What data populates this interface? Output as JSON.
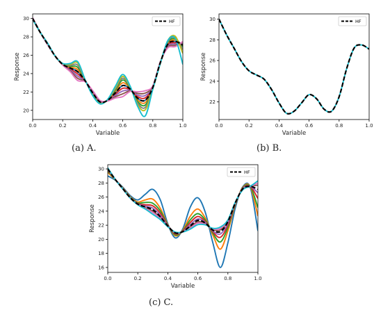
{
  "chart_data": [
    {
      "type": "line",
      "panel": "A",
      "xlabel": "Variable",
      "ylabel": "Response",
      "xlim": [
        0,
        1
      ],
      "ylim": [
        19,
        30.5
      ],
      "xticks": [
        0.0,
        0.2,
        0.4,
        0.6,
        0.8,
        1.0
      ],
      "yticks": [
        20,
        22,
        24,
        26,
        28,
        30
      ],
      "legend": {
        "position": "top-right",
        "entries": [
          "HF"
        ]
      },
      "grid": false,
      "x": [
        0,
        0.05,
        0.1,
        0.15,
        0.2,
        0.25,
        0.3,
        0.35,
        0.4,
        0.45,
        0.5,
        0.55,
        0.6,
        0.65,
        0.7,
        0.75,
        0.8,
        0.85,
        0.9,
        0.95,
        1.0
      ],
      "series": [
        {
          "name": "HF",
          "style": "dashed",
          "color": "#000000",
          "values": [
            30.0,
            28.5,
            27.2,
            25.9,
            25.0,
            24.6,
            24.2,
            23.2,
            21.9,
            20.9,
            21.1,
            21.9,
            22.7,
            22.3,
            21.3,
            21.1,
            22.5,
            25.2,
            27.2,
            27.5,
            27.1
          ]
        },
        {
          "color": "#1f77b4",
          "values": [
            30.0,
            28.5,
            27.2,
            25.9,
            25.0,
            24.6,
            24.2,
            23.2,
            21.9,
            20.9,
            21.1,
            21.9,
            22.7,
            22.3,
            21.3,
            21.1,
            22.5,
            25.2,
            27.2,
            27.5,
            27.1
          ]
        },
        {
          "color": "#ff7f0e",
          "values": [
            29.98,
            28.5,
            27.22,
            25.9,
            25.02,
            24.7,
            24.44,
            23.22,
            21.84,
            20.86,
            21.12,
            22.04,
            23.0,
            22.36,
            21.12,
            20.84,
            22.46,
            25.18,
            27.3,
            27.64,
            27.0
          ]
        },
        {
          "color": "#2ca02c",
          "values": [
            29.96,
            28.5,
            27.24,
            25.9,
            25.04,
            24.8,
            24.68,
            23.24,
            21.78,
            20.82,
            21.14,
            22.18,
            23.3,
            22.42,
            20.94,
            20.58,
            22.42,
            25.16,
            27.4,
            27.78,
            26.9
          ]
        },
        {
          "color": "#d62728",
          "values": [
            30.02,
            28.5,
            27.18,
            25.9,
            24.98,
            24.5,
            23.96,
            23.18,
            21.96,
            20.94,
            21.08,
            21.76,
            22.4,
            22.24,
            21.48,
            21.36,
            22.54,
            25.22,
            27.1,
            27.36,
            27.2
          ]
        },
        {
          "color": "#9467bd",
          "values": [
            30.04,
            28.5,
            27.16,
            25.9,
            24.96,
            24.4,
            23.72,
            23.16,
            22.02,
            20.98,
            21.06,
            21.62,
            22.1,
            22.18,
            21.66,
            21.62,
            22.58,
            25.24,
            27.0,
            27.22,
            27.3
          ]
        },
        {
          "color": "#8c564b",
          "values": [
            30.06,
            28.5,
            27.14,
            25.9,
            24.94,
            24.3,
            23.48,
            23.14,
            22.08,
            21.02,
            21.04,
            21.48,
            21.8,
            22.12,
            21.84,
            21.88,
            22.62,
            25.26,
            26.9,
            27.08,
            27.4
          ]
        },
        {
          "color": "#e377c2",
          "values": [
            30.08,
            28.5,
            27.12,
            25.9,
            24.92,
            24.2,
            23.24,
            23.12,
            22.14,
            21.06,
            21.02,
            21.34,
            21.5,
            22.06,
            22.02,
            22.14,
            22.66,
            25.28,
            26.8,
            26.94,
            27.5
          ]
        },
        {
          "color": "#7f7f7f",
          "values": [
            29.94,
            28.5,
            27.26,
            25.9,
            25.06,
            24.9,
            24.92,
            23.26,
            21.72,
            20.78,
            21.16,
            22.32,
            23.5,
            22.48,
            20.76,
            20.32,
            22.38,
            25.14,
            27.5,
            27.92,
            26.6
          ]
        },
        {
          "color": "#bcbd22",
          "values": [
            29.92,
            28.5,
            27.28,
            25.9,
            25.08,
            25.0,
            25.16,
            23.28,
            21.66,
            20.74,
            21.18,
            22.46,
            23.7,
            22.54,
            20.58,
            20.06,
            22.34,
            25.12,
            27.6,
            28.06,
            26.2
          ]
        },
        {
          "color": "#17becf",
          "values": [
            29.9,
            28.5,
            27.3,
            25.9,
            25.1,
            25.1,
            25.3,
            23.3,
            21.6,
            20.7,
            21.2,
            22.6,
            23.9,
            22.6,
            20.4,
            19.4,
            22.3,
            25.1,
            27.6,
            27.8,
            25.0
          ]
        }
      ]
    },
    {
      "type": "line",
      "panel": "B",
      "xlabel": "Variable",
      "ylabel": "Response",
      "xlim": [
        0,
        1
      ],
      "ylim": [
        20.3,
        30.5
      ],
      "xticks": [
        0.0,
        0.2,
        0.4,
        0.6,
        0.8,
        1.0
      ],
      "yticks": [
        22,
        24,
        26,
        28,
        30
      ],
      "legend": {
        "position": "top-right",
        "entries": [
          "HF"
        ]
      },
      "grid": false,
      "x": [
        0,
        0.05,
        0.1,
        0.15,
        0.2,
        0.25,
        0.3,
        0.35,
        0.4,
        0.45,
        0.5,
        0.55,
        0.6,
        0.65,
        0.7,
        0.75,
        0.8,
        0.85,
        0.9,
        0.95,
        1.0
      ],
      "series": [
        {
          "name": "HF",
          "style": "dashed",
          "color": "#000000",
          "values": [
            30.0,
            28.5,
            27.2,
            25.9,
            25.0,
            24.6,
            24.2,
            23.2,
            21.9,
            20.9,
            21.1,
            21.9,
            22.7,
            22.3,
            21.3,
            21.1,
            22.5,
            25.2,
            27.2,
            27.5,
            27.1
          ]
        },
        {
          "color": "#17becf",
          "values": [
            30.0,
            28.5,
            27.2,
            25.9,
            25.0,
            24.6,
            24.2,
            23.2,
            21.9,
            20.9,
            21.1,
            21.9,
            22.7,
            22.3,
            21.3,
            21.1,
            22.5,
            25.2,
            27.2,
            27.5,
            27.1
          ]
        }
      ]
    },
    {
      "type": "line",
      "panel": "C",
      "xlabel": "Variable",
      "ylabel": "Response",
      "xlim": [
        0,
        1
      ],
      "ylim": [
        15.3,
        30.6
      ],
      "xticks": [
        0.0,
        0.2,
        0.4,
        0.6,
        0.8,
        1.0
      ],
      "yticks": [
        16,
        18,
        20,
        22,
        24,
        26,
        28,
        30
      ],
      "legend": {
        "position": "top-right",
        "entries": [
          "HF"
        ]
      },
      "grid": false,
      "x": [
        0,
        0.05,
        0.1,
        0.15,
        0.2,
        0.25,
        0.3,
        0.35,
        0.4,
        0.45,
        0.5,
        0.55,
        0.6,
        0.65,
        0.7,
        0.75,
        0.8,
        0.85,
        0.9,
        0.95,
        1.0
      ],
      "series": [
        {
          "name": "HF",
          "style": "dashed",
          "color": "#000000",
          "values": [
            30.0,
            28.5,
            27.2,
            25.9,
            25.0,
            24.6,
            24.2,
            23.2,
            21.9,
            20.9,
            21.1,
            21.9,
            22.7,
            22.3,
            21.3,
            21.1,
            22.5,
            25.2,
            27.2,
            27.5,
            27.1
          ]
        },
        {
          "color": "#1f77b4",
          "values": [
            29.0,
            28.4,
            27.4,
            26.2,
            25.6,
            26.4,
            27.1,
            25.6,
            22.2,
            20.2,
            21.5,
            24.6,
            25.9,
            23.8,
            19.5,
            16.0,
            19.5,
            24.5,
            27.5,
            27.3,
            21.2
          ]
        },
        {
          "color": "#ff7f0e",
          "values": [
            29.5,
            28.45,
            27.3,
            26.05,
            25.3,
            25.6,
            25.7,
            24.4,
            22.1,
            20.5,
            21.3,
            23.3,
            24.3,
            23.0,
            20.6,
            18.6,
            21.2,
            24.9,
            27.4,
            27.45,
            23.3
          ]
        },
        {
          "color": "#2ca02c",
          "values": [
            29.7,
            28.47,
            27.26,
            25.99,
            25.18,
            25.24,
            25.12,
            24.04,
            22.06,
            20.62,
            21.22,
            22.78,
            23.64,
            22.72,
            20.88,
            19.62,
            21.68,
            24.98,
            27.34,
            27.48,
            24.5
          ]
        },
        {
          "color": "#d62728",
          "values": [
            29.85,
            28.49,
            27.23,
            25.94,
            25.09,
            24.91,
            24.75,
            23.71,
            22.0,
            20.77,
            21.17,
            22.4,
            23.24,
            22.51,
            21.06,
            20.28,
            22.01,
            25.07,
            27.28,
            27.49,
            25.8
          ]
        },
        {
          "color": "#9467bd",
          "values": [
            29.95,
            28.5,
            27.21,
            25.91,
            25.03,
            24.72,
            24.42,
            23.41,
            21.95,
            20.86,
            21.12,
            22.09,
            22.9,
            22.39,
            21.2,
            20.76,
            22.3,
            25.15,
            27.23,
            27.5,
            26.6
          ]
        },
        {
          "color": "#8c564b",
          "values": [
            30.05,
            28.5,
            27.19,
            25.89,
            24.98,
            24.5,
            24.0,
            23.1,
            21.86,
            20.94,
            21.08,
            21.78,
            22.5,
            22.22,
            21.38,
            21.34,
            22.62,
            25.22,
            27.14,
            27.52,
            27.7
          ]
        },
        {
          "color": "#e377c2",
          "values": [
            30.1,
            28.5,
            27.17,
            25.87,
            24.95,
            24.4,
            23.8,
            22.95,
            21.82,
            20.98,
            21.06,
            21.62,
            22.3,
            22.14,
            21.46,
            21.56,
            22.68,
            25.26,
            27.1,
            27.53,
            28.0
          ]
        },
        {
          "color": "#17becf",
          "values": [
            30.15,
            28.5,
            27.15,
            25.85,
            24.9,
            24.3,
            23.55,
            22.8,
            21.78,
            21.02,
            21.04,
            21.46,
            22.08,
            22.05,
            21.56,
            21.75,
            22.75,
            25.3,
            27.05,
            27.55,
            28.3
          ]
        }
      ]
    }
  ],
  "captions": [
    "(a) A.",
    "(b) B.",
    "(c) C."
  ]
}
